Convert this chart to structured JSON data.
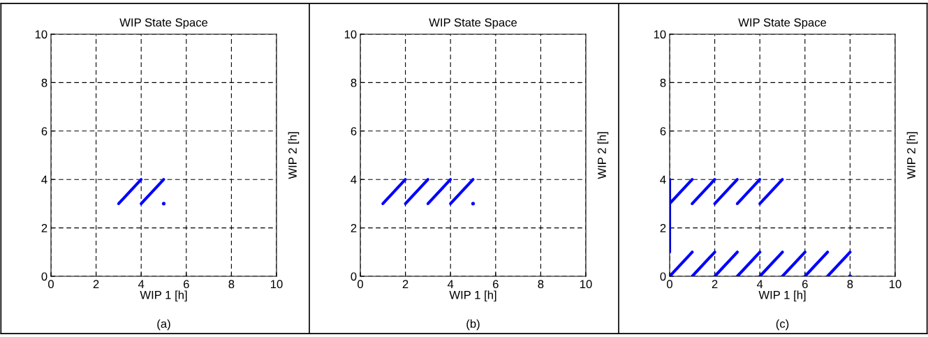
{
  "chart_data": [
    {
      "type": "line",
      "title": "WIP State Space",
      "xlabel": "WIP 1 [h]",
      "ylabel": "WIP 2 [h]",
      "annotations": [
        "(a)"
      ],
      "xlim": [
        0,
        10
      ],
      "ylim": [
        0,
        10
      ],
      "xticks": [
        0,
        2,
        4,
        6,
        8,
        10
      ],
      "yticks": [
        0,
        2,
        4,
        6,
        8,
        10
      ],
      "grid": true,
      "series": [
        {
          "color": "#0000ff",
          "x": [
            3,
            4
          ],
          "values": [
            3,
            4
          ]
        },
        {
          "color": "#0000ff",
          "x": [
            4,
            5
          ],
          "values": [
            3,
            4
          ]
        },
        {
          "type": "scatter",
          "color": "#0000ff",
          "x": [
            5
          ],
          "values": [
            3
          ]
        }
      ]
    },
    {
      "type": "line",
      "title": "WIP State Space",
      "xlabel": "WIP 1 [h]",
      "ylabel": "WIP 2 [h]",
      "annotations": [
        "(b)"
      ],
      "xlim": [
        0,
        10
      ],
      "ylim": [
        0,
        10
      ],
      "xticks": [
        0,
        2,
        4,
        6,
        8,
        10
      ],
      "yticks": [
        0,
        2,
        4,
        6,
        8,
        10
      ],
      "grid": true,
      "series": [
        {
          "color": "#0000ff",
          "x": [
            1,
            2
          ],
          "values": [
            3,
            4
          ]
        },
        {
          "color": "#0000ff",
          "x": [
            2,
            3
          ],
          "values": [
            3,
            4
          ]
        },
        {
          "color": "#0000ff",
          "x": [
            3,
            4
          ],
          "values": [
            3,
            4
          ]
        },
        {
          "color": "#0000ff",
          "x": [
            4,
            5
          ],
          "values": [
            3,
            4
          ]
        },
        {
          "type": "scatter",
          "color": "#0000ff",
          "x": [
            5
          ],
          "values": [
            3
          ]
        }
      ]
    },
    {
      "type": "line",
      "title": "WIP State Space",
      "xlabel": "WIP 1 [h]",
      "ylabel": "WIP 2 [h]",
      "annotations": [
        "(c)"
      ],
      "xlim": [
        0,
        10
      ],
      "ylim": [
        0,
        10
      ],
      "xticks": [
        0,
        2,
        4,
        6,
        8,
        10
      ],
      "yticks": [
        0,
        2,
        4,
        6,
        8,
        10
      ],
      "grid": true,
      "series": [
        {
          "color": "#0000ff",
          "x": [
            0,
            0
          ],
          "values": [
            1,
            4
          ]
        },
        {
          "color": "#0000ff",
          "x": [
            0,
            1
          ],
          "values": [
            3,
            4
          ]
        },
        {
          "color": "#0000ff",
          "x": [
            1,
            2
          ],
          "values": [
            3,
            4
          ]
        },
        {
          "color": "#0000ff",
          "x": [
            2,
            3
          ],
          "values": [
            3,
            4
          ]
        },
        {
          "color": "#0000ff",
          "x": [
            3,
            4
          ],
          "values": [
            3,
            4
          ]
        },
        {
          "color": "#0000ff",
          "x": [
            4,
            5
          ],
          "values": [
            3,
            4
          ]
        },
        {
          "color": "#0000ff",
          "x": [
            0,
            1
          ],
          "values": [
            0,
            1
          ]
        },
        {
          "color": "#0000ff",
          "x": [
            1,
            2
          ],
          "values": [
            0,
            1
          ]
        },
        {
          "color": "#0000ff",
          "x": [
            2,
            3
          ],
          "values": [
            0,
            1
          ]
        },
        {
          "color": "#0000ff",
          "x": [
            3,
            4
          ],
          "values": [
            0,
            1
          ]
        },
        {
          "color": "#0000ff",
          "x": [
            4,
            5
          ],
          "values": [
            0,
            1
          ]
        },
        {
          "color": "#0000ff",
          "x": [
            5,
            6
          ],
          "values": [
            0,
            1
          ]
        },
        {
          "color": "#0000ff",
          "x": [
            6,
            7
          ],
          "values": [
            0,
            1
          ]
        },
        {
          "color": "#0000ff",
          "x": [
            7,
            8
          ],
          "values": [
            0,
            1
          ]
        },
        {
          "type": "scatter",
          "color": "#0000ff",
          "x": [
            8
          ],
          "values": [
            0
          ]
        }
      ]
    }
  ]
}
